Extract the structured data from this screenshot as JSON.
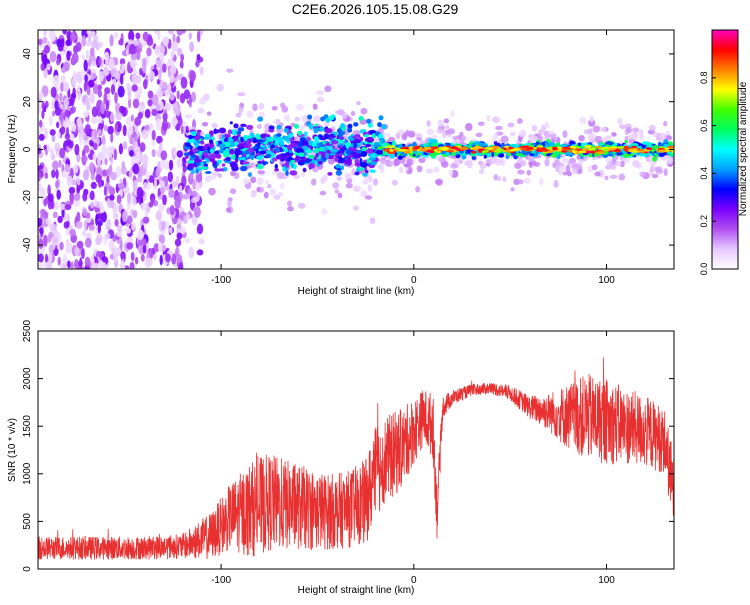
{
  "title": "C2E6.2026.105.15.08.G29",
  "chart_data": [
    {
      "type": "heatmap",
      "xlabel": "Height of straight line (km)",
      "ylabel": "Frequency (Hz)",
      "xlim": [
        -195,
        135
      ],
      "ylim": [
        -50,
        50
      ],
      "x_ticks": [
        -100,
        0,
        100
      ],
      "x_tick_labels": [
        "-100",
        "0",
        "100"
      ],
      "y_ticks": [
        -40,
        -20,
        0,
        20,
        40
      ],
      "y_tick_labels": [
        "-40",
        "-20",
        "0",
        "20",
        "40"
      ],
      "grid": false,
      "colorbar": {
        "label": "Normalized spectral amplitude",
        "range": [
          0,
          1
        ],
        "ticks": [
          0.0,
          0.2,
          0.4,
          0.6,
          0.8
        ],
        "tick_labels": [
          "0.0",
          "0.2",
          "0.4",
          "0.6",
          "0.8"
        ],
        "colormap": [
          "#ffffff",
          "#e6c8ff",
          "#b050f0",
          "#7a00ff",
          "#0000ff",
          "#00a0ff",
          "#00ffff",
          "#00ff60",
          "#40ff00",
          "#ffff00",
          "#ff8000",
          "#ff0000",
          "#ff00c0"
        ]
      },
      "description_regions": [
        {
          "x_range": [
            -195,
            -115
          ],
          "freq_range": [
            -50,
            50
          ],
          "amplitude": "scattered noise 0.05-0.25"
        },
        {
          "x_range": [
            -115,
            -20
          ],
          "freq_range": [
            -8,
            8
          ],
          "amplitude": "band 0.2-0.5 with bursts"
        },
        {
          "x_range": [
            -20,
            135
          ],
          "freq_range": [
            -3,
            3
          ],
          "amplitude": "narrow carrier 0.5-0.9"
        }
      ]
    },
    {
      "type": "line",
      "xlabel": "Height of straight line (km)",
      "ylabel": "SNR (10 * v/v)",
      "xlim": [
        -195,
        135
      ],
      "ylim": [
        0,
        2500
      ],
      "x_ticks": [
        -100,
        0,
        100
      ],
      "x_tick_labels": [
        "-100",
        "0",
        "100"
      ],
      "y_ticks": [
        0,
        500,
        1000,
        1500,
        2000,
        2500
      ],
      "y_tick_labels": [
        "0",
        "500",
        "1000",
        "1500",
        "2000",
        "2500"
      ],
      "grid": false,
      "color": "#e83030",
      "envelope": {
        "x": [
          -195,
          -140,
          -120,
          -105,
          -95,
          -85,
          -75,
          -60,
          -45,
          -35,
          -25,
          -20,
          -15,
          -10,
          -5,
          0,
          5,
          10,
          12,
          15,
          20,
          30,
          40,
          50,
          60,
          70,
          80,
          90,
          100,
          110,
          120,
          130,
          135
        ],
        "mean": [
          220,
          220,
          240,
          350,
          550,
          620,
          700,
          650,
          600,
          620,
          700,
          1000,
          1150,
          1200,
          1300,
          1450,
          1600,
          1500,
          600,
          1700,
          1800,
          1880,
          1900,
          1850,
          1700,
          1650,
          1600,
          1600,
          1550,
          1500,
          1450,
          1350,
          800
        ],
        "spread": [
          120,
          120,
          130,
          250,
          350,
          500,
          520,
          450,
          400,
          400,
          450,
          500,
          450,
          450,
          400,
          350,
          300,
          350,
          300,
          120,
          80,
          60,
          60,
          80,
          120,
          200,
          350,
          450,
          450,
          400,
          380,
          350,
          400
        ]
      }
    }
  ]
}
